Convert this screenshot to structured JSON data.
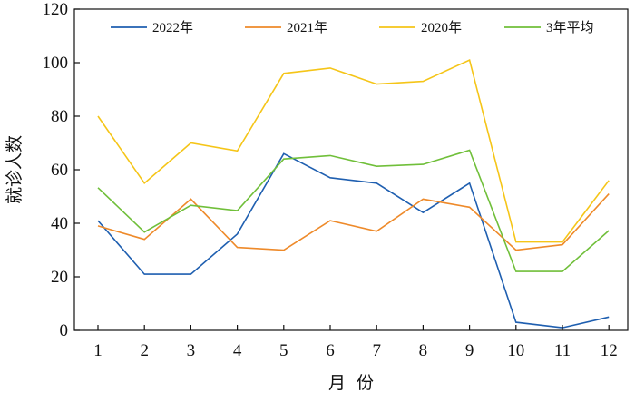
{
  "chart_data": {
    "type": "line",
    "xlabel": "月  份",
    "ylabel": "就诊人数",
    "categories": [
      "1",
      "2",
      "3",
      "4",
      "5",
      "6",
      "7",
      "8",
      "9",
      "10",
      "11",
      "12"
    ],
    "ylim": [
      0,
      120
    ],
    "yticks": [
      0,
      20,
      40,
      60,
      80,
      100,
      120
    ],
    "grid": false,
    "legend_position": "top",
    "series": [
      {
        "name": "2022年",
        "color": "#1f5fb0",
        "values": [
          41,
          21,
          21,
          36,
          66,
          57,
          55,
          44,
          55,
          3,
          1,
          5
        ]
      },
      {
        "name": "2021年",
        "color": "#ee8a2a",
        "values": [
          39,
          34,
          49,
          31,
          30,
          41,
          37,
          49,
          46,
          30,
          32,
          51
        ]
      },
      {
        "name": "2020年",
        "color": "#f5c518",
        "values": [
          80,
          55,
          70,
          67,
          96,
          98,
          92,
          93,
          101,
          33,
          33,
          56
        ]
      },
      {
        "name": "3年平均",
        "color": "#70bf3a",
        "values": [
          53.3,
          36.7,
          46.7,
          44.7,
          64,
          65.3,
          61.3,
          62,
          67.3,
          22,
          22,
          37.3
        ]
      }
    ]
  }
}
